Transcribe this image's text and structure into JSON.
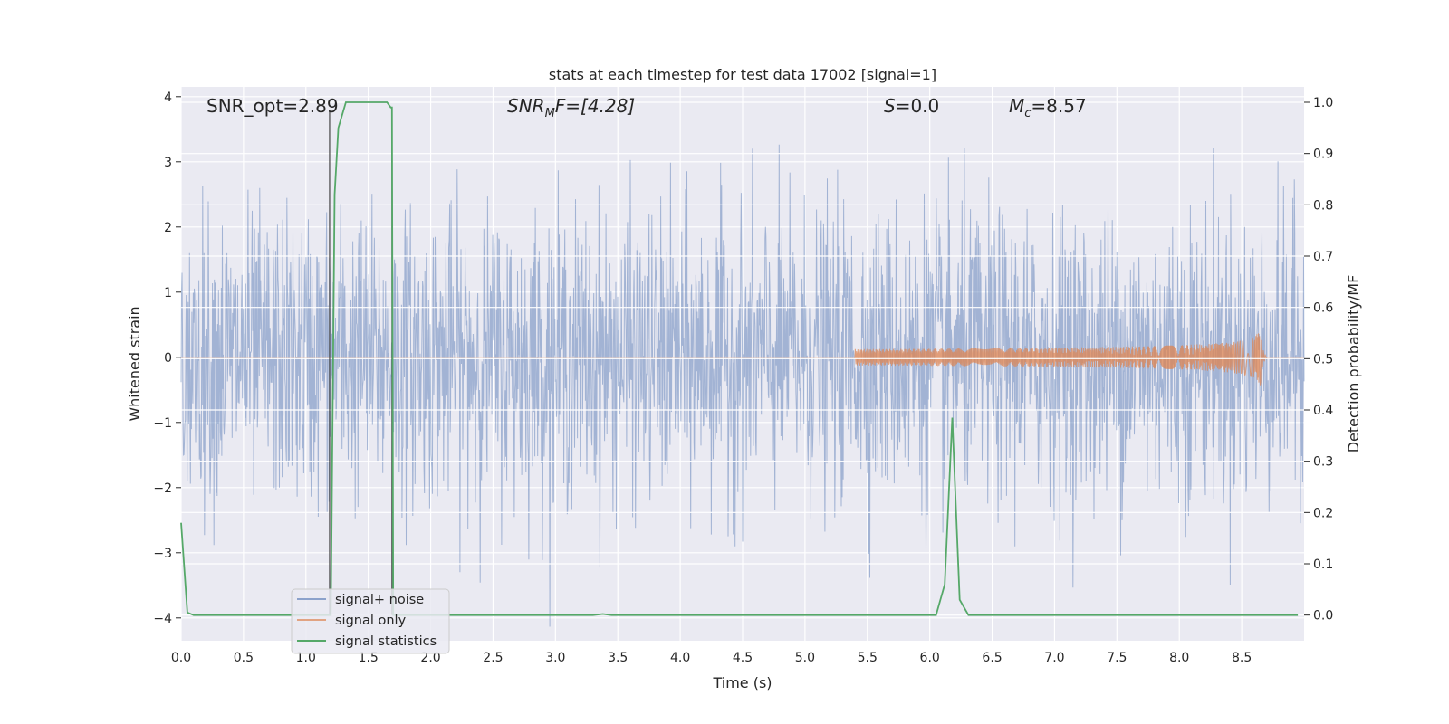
{
  "chart_data": {
    "type": "line",
    "title": "stats at each timestep for test data 17002 [signal=1]",
    "xlabel": "Time (s)",
    "ylabel_left": "Whitened strain",
    "ylabel_right": "Detection probability/MF",
    "xlim": [
      0.0,
      9.0
    ],
    "ylim_left": [
      -4.35,
      4.15
    ],
    "ylim_right": [
      -0.05,
      1.03
    ],
    "xticks": [
      "0.0",
      "0.5",
      "1.0",
      "1.5",
      "2.0",
      "2.5",
      "3.0",
      "3.5",
      "4.0",
      "4.5",
      "5.0",
      "5.5",
      "6.0",
      "6.5",
      "7.0",
      "7.5",
      "8.0",
      "8.5"
    ],
    "yticks_left": [
      "4",
      "3",
      "2",
      "1",
      "0",
      "−1",
      "−2",
      "−3",
      "−4"
    ],
    "yticks_right": [
      "1.0",
      "0.9",
      "0.8",
      "0.7",
      "0.6",
      "0.5",
      "0.4",
      "0.3",
      "0.2",
      "0.1",
      "0.0"
    ],
    "grid": true,
    "legend_position": "lower-left",
    "annotations": {
      "snr_opt": "SNR_opt=2.89",
      "snr_mf_sym": "SNR",
      "snr_mf_sub": "M",
      "snr_mf_rest": "F=[4.28]",
      "s_sym": "S",
      "s_rest": "=0.0",
      "mc_sym": "M",
      "mc_sub": "c",
      "mc_rest": "=8.57"
    },
    "series": [
      {
        "name": "signal+ noise",
        "color": "#4c72b0",
        "axis": "left",
        "noise_std": 1.0
      },
      {
        "name": "signal only",
        "color": "#dd8452",
        "axis": "left",
        "chirp": {
          "start": 5.4,
          "merger": 8.65,
          "peak_amplitude": 0.45
        }
      },
      {
        "name": "signal statistics",
        "color": "#55a868",
        "axis": "right",
        "x": [
          0.0,
          0.05,
          0.1,
          1.0,
          1.19,
          1.2,
          1.23,
          1.26,
          1.32,
          1.4,
          1.5,
          1.6,
          1.65,
          1.68,
          1.69,
          1.7,
          1.71,
          1.72,
          1.8,
          3.3,
          3.38,
          3.45,
          6.0,
          6.05,
          6.12,
          6.18,
          6.24,
          6.31,
          6.4,
          8.95
        ],
        "y": [
          0.18,
          0.005,
          0.0,
          0.0,
          0.0,
          0.0,
          0.82,
          0.95,
          1.0,
          1.0,
          1.0,
          1.0,
          1.0,
          0.99,
          0.99,
          0.0,
          0.0,
          0.0,
          0.0,
          0.0,
          0.002,
          0.0,
          0.0,
          0.0,
          0.06,
          0.385,
          0.03,
          0.0,
          0.0,
          0.0
        ]
      }
    ],
    "vertical_markers": [
      {
        "x": 1.19,
        "color": "#444444",
        "y_top": 3.8
      },
      {
        "x": 1.69,
        "color": "#444444",
        "y_top": 3.8
      }
    ]
  }
}
